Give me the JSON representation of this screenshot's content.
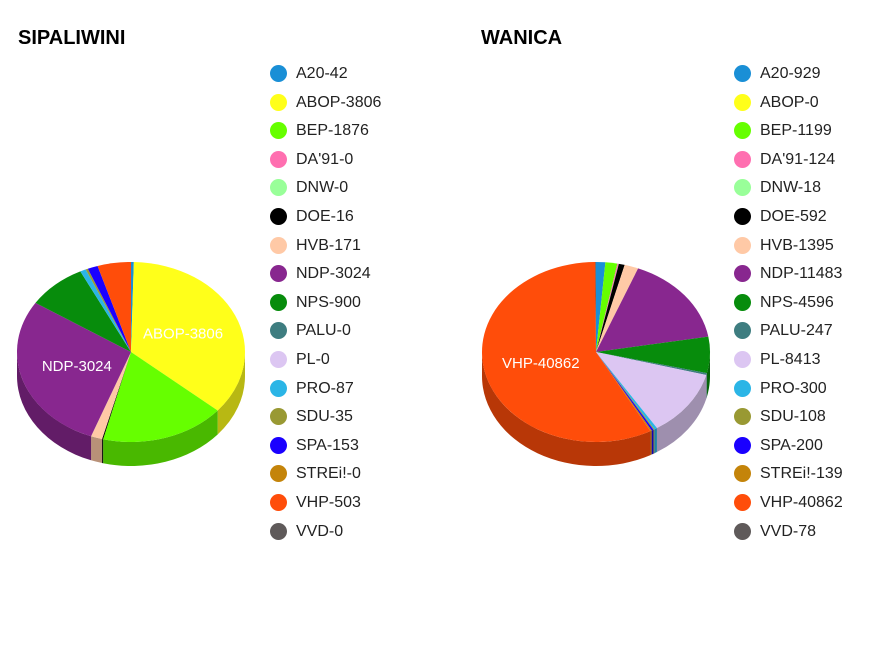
{
  "chart_data": [
    {
      "type": "pie",
      "title": "SIPALIWINI",
      "slices": [
        {
          "name": "A20",
          "value": 42,
          "label": "A20-42",
          "color": "#1a8fd6"
        },
        {
          "name": "ABOP",
          "value": 3806,
          "label": "ABOP-3806",
          "color": "#ffff1a"
        },
        {
          "name": "BEP",
          "value": 1876,
          "label": "BEP-1876",
          "color": "#66ff00"
        },
        {
          "name": "DA'91",
          "value": 0,
          "label": "DA'91-0",
          "color": "#ff6fb0"
        },
        {
          "name": "DNW",
          "value": 0,
          "label": "DNW-0",
          "color": "#99ff99"
        },
        {
          "name": "DOE",
          "value": 16,
          "label": "DOE-16",
          "color": "#000000"
        },
        {
          "name": "HVB",
          "value": 171,
          "label": "HVB-171",
          "color": "#ffc9a6"
        },
        {
          "name": "NDP",
          "value": 3024,
          "label": "NDP-3024",
          "color": "#88278f"
        },
        {
          "name": "NPS",
          "value": 900,
          "label": "NPS-900",
          "color": "#078c0c"
        },
        {
          "name": "PALU",
          "value": 0,
          "label": "PALU-0",
          "color": "#3e7d80"
        },
        {
          "name": "PL",
          "value": 0,
          "label": "PL-0",
          "color": "#dcc6f2"
        },
        {
          "name": "PRO",
          "value": 87,
          "label": "PRO-87",
          "color": "#2bb5e6"
        },
        {
          "name": "SDU",
          "value": 35,
          "label": "SDU-35",
          "color": "#999933"
        },
        {
          "name": "SPA",
          "value": 153,
          "label": "SPA-153",
          "color": "#1a00ff"
        },
        {
          "name": "STREi!",
          "value": 0,
          "label": "STREi!-0",
          "color": "#c4840a"
        },
        {
          "name": "VHP",
          "value": 503,
          "label": "VHP-503",
          "color": "#ff4d0a"
        },
        {
          "name": "VVD",
          "value": 0,
          "label": "VVD-0",
          "color": "#5f5a5a"
        }
      ],
      "slice_labels": [
        "ABOP-3806",
        "NDP-3024"
      ],
      "legend": "right"
    },
    {
      "type": "pie",
      "title": "WANICA",
      "slices": [
        {
          "name": "A20",
          "value": 929,
          "label": "A20-929",
          "color": "#1a8fd6"
        },
        {
          "name": "ABOP",
          "value": 0,
          "label": "ABOP-0",
          "color": "#ffff1a"
        },
        {
          "name": "BEP",
          "value": 1199,
          "label": "BEP-1199",
          "color": "#66ff00"
        },
        {
          "name": "DA'91",
          "value": 124,
          "label": "DA'91-124",
          "color": "#ff6fb0"
        },
        {
          "name": "DNW",
          "value": 18,
          "label": "DNW-18",
          "color": "#99ff99"
        },
        {
          "name": "DOE",
          "value": 592,
          "label": "DOE-592",
          "color": "#000000"
        },
        {
          "name": "HVB",
          "value": 1395,
          "label": "HVB-1395",
          "color": "#ffc9a6"
        },
        {
          "name": "NDP",
          "value": 11483,
          "label": "NDP-11483",
          "color": "#88278f"
        },
        {
          "name": "NPS",
          "value": 4596,
          "label": "NPS-4596",
          "color": "#078c0c"
        },
        {
          "name": "PALU",
          "value": 247,
          "label": "PALU-247",
          "color": "#3e7d80"
        },
        {
          "name": "PL",
          "value": 8413,
          "label": "PL-8413",
          "color": "#dcc6f2"
        },
        {
          "name": "PRO",
          "value": 300,
          "label": "PRO-300",
          "color": "#2bb5e6"
        },
        {
          "name": "SDU",
          "value": 108,
          "label": "SDU-108",
          "color": "#999933"
        },
        {
          "name": "SPA",
          "value": 200,
          "label": "SPA-200",
          "color": "#1a00ff"
        },
        {
          "name": "STREi!",
          "value": 139,
          "label": "STREi!-139",
          "color": "#c4840a"
        },
        {
          "name": "VHP",
          "value": 40862,
          "label": "VHP-40862",
          "color": "#ff4d0a"
        },
        {
          "name": "VVD",
          "value": 78,
          "label": "VVD-78",
          "color": "#5f5a5a"
        }
      ],
      "slice_labels": [
        "VHP-40862"
      ],
      "legend": "right"
    }
  ]
}
